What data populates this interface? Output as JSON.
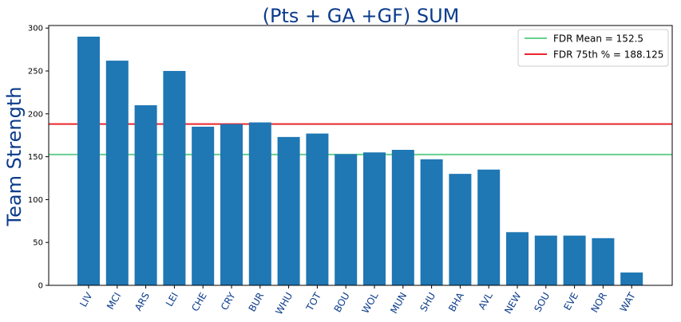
{
  "chart_data": {
    "type": "bar",
    "title": "(Pts + GA +GF) SUM",
    "xlabel": "",
    "ylabel": "Team Strength",
    "ylim": [
      0,
      303
    ],
    "yticks": [
      0,
      50,
      100,
      150,
      200,
      250,
      300
    ],
    "grid": false,
    "legend_position": "top-right",
    "bar_color": "#1f77b4",
    "categories": [
      "LIV",
      "MCI",
      "ARS",
      "LEI",
      "CHE",
      "CRY",
      "BUR",
      "WHU",
      "TOT",
      "BOU",
      "WOL",
      "MUN",
      "SHU",
      "BHA",
      "AVL",
      "NEW",
      "SOU",
      "EVE",
      "NOR",
      "WAT"
    ],
    "values": [
      290,
      262,
      210,
      250,
      185,
      188,
      190,
      173,
      177,
      153,
      155,
      158,
      147,
      130,
      135,
      62,
      58,
      58,
      55,
      15
    ],
    "reference_lines": [
      {
        "label": "FDR Mean = 152.5",
        "value": 152.5,
        "color": "#66d08f"
      },
      {
        "label": "FDR 75th % = 188.125",
        "value": 188.125,
        "color": "#e8262b"
      }
    ]
  }
}
